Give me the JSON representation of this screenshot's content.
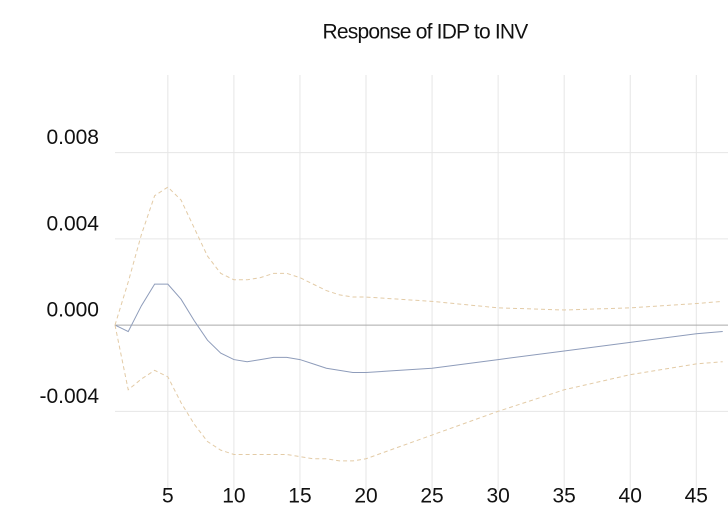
{
  "chart_data": {
    "type": "line",
    "title": "Response of IDP to INV",
    "x": [
      1,
      2,
      3,
      4,
      5,
      6,
      7,
      8,
      9,
      10,
      11,
      12,
      13,
      14,
      15,
      16,
      17,
      18,
      19,
      20,
      25,
      30,
      35,
      40,
      45,
      47
    ],
    "series": [
      {
        "color": "#8e9cba",
        "dashed": false,
        "values": [
          0,
          -0.0003,
          0.0009,
          0.0019,
          0.0019,
          0.0012,
          0.0002,
          -0.0007,
          -0.0013,
          -0.0016,
          -0.0017,
          -0.0016,
          -0.0015,
          -0.0015,
          -0.0016,
          -0.0018,
          -0.002,
          -0.0021,
          -0.0022,
          -0.0022,
          -0.002,
          -0.0016,
          -0.0012,
          -0.0008,
          -0.0004,
          -0.0003
        ]
      },
      {
        "color": "#e3cba6",
        "dashed": true,
        "values": [
          0,
          0.002,
          0.0042,
          0.006,
          0.0064,
          0.0058,
          0.0045,
          0.0032,
          0.0024,
          0.0021,
          0.0021,
          0.0022,
          0.0024,
          0.0024,
          0.0022,
          0.0019,
          0.0016,
          0.0014,
          0.0013,
          0.0013,
          0.0011,
          0.0008,
          0.0007,
          0.0008,
          0.001,
          0.0011
        ]
      },
      {
        "color": "#e3cba6",
        "dashed": true,
        "values": [
          0,
          -0.003,
          -0.0025,
          -0.0021,
          -0.0024,
          -0.0036,
          -0.0046,
          -0.0054,
          -0.0058,
          -0.006,
          -0.006,
          -0.006,
          -0.006,
          -0.006,
          -0.0061,
          -0.0062,
          -0.0062,
          -0.0063,
          -0.0063,
          -0.0062,
          -0.0051,
          -0.004,
          -0.003,
          -0.0023,
          -0.0018,
          -0.0017
        ]
      }
    ],
    "xlim": [
      1,
      47.4
    ],
    "xticks": [
      5,
      10,
      15,
      20,
      25,
      30,
      35,
      40,
      45
    ],
    "ylim": [
      -0.007,
      0.0116
    ],
    "yticks": [
      -0.004,
      {
        "value": 0,
        "label": "0.000"
      },
      0.004,
      0.008
    ],
    "grid": true
  }
}
